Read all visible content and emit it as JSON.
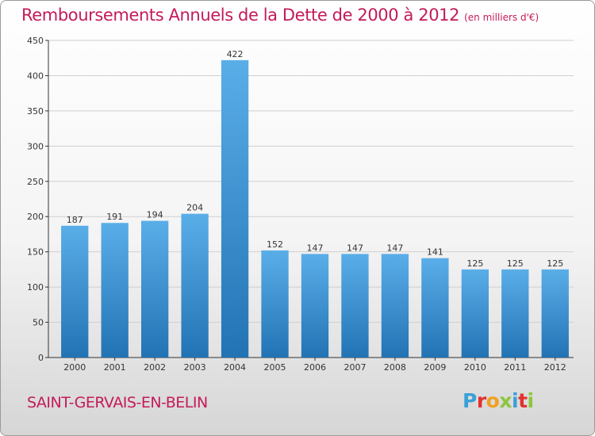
{
  "header": {
    "title": "Remboursements Annuels de la Dette de 2000 à 2012",
    "subtitle": "(en milliers d'€)"
  },
  "footer": {
    "location": "SAINT-GERVAIS-EN-BELIN",
    "brand_letters": [
      {
        "ch": "P",
        "color": "#3aa0d8"
      },
      {
        "ch": "r",
        "color": "#e2322e"
      },
      {
        "ch": "o",
        "color": "#f1a020"
      },
      {
        "ch": "x",
        "color": "#8cc63e"
      },
      {
        "ch": "i",
        "color": "#3aa0d8"
      },
      {
        "ch": "t",
        "color": "#e2322e"
      },
      {
        "ch": "i",
        "color": "#8cc63e"
      }
    ]
  },
  "colors": {
    "bar_top": "#5aaee8",
    "bar_bottom": "#2273b4",
    "grid": "#cfcfcf",
    "title": "#c41a5a"
  },
  "chart_data": {
    "type": "bar",
    "title": "Remboursements Annuels de la Dette de 2000 à 2012",
    "subtitle": "(en milliers d'€)",
    "categories": [
      "2000",
      "2001",
      "2002",
      "2003",
      "2004",
      "2005",
      "2006",
      "2007",
      "2008",
      "2009",
      "2010",
      "2011",
      "2012"
    ],
    "values": [
      187,
      191,
      194,
      204,
      422,
      152,
      147,
      147,
      147,
      141,
      125,
      125,
      125
    ],
    "ylim": [
      0,
      450
    ],
    "yticks": [
      0,
      50,
      100,
      150,
      200,
      250,
      300,
      350,
      400,
      450
    ],
    "grid": true,
    "xlabel": "",
    "ylabel": ""
  }
}
